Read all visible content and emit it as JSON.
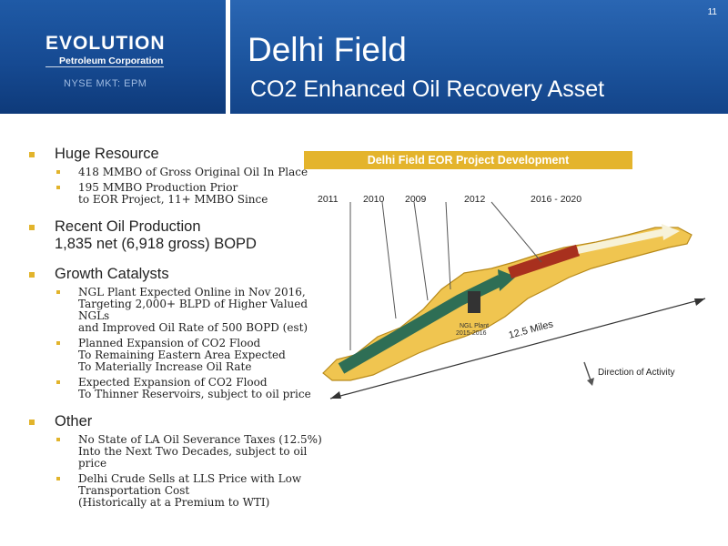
{
  "header": {
    "logo_word": "EVOLUTION",
    "logo_sub": "Petroleum Corporation",
    "ticker": "NYSE MKT: EPM",
    "title": "Delhi Field",
    "subtitle": "CO2 Enhanced Oil Recovery Asset",
    "slide_number": "11"
  },
  "bullets": [
    {
      "text": "Huge Resource",
      "sub": [
        "418 MMBO of Gross Original Oil In Place",
        "195 MMBO Production Prior\nto EOR Project, 11+ MMBO Since"
      ]
    },
    {
      "text": "Recent Oil Production\n1,835 net (6,918 gross) BOPD",
      "sub": []
    },
    {
      "text": "Growth Catalysts",
      "sub": [
        "NGL Plant Expected Online in Nov 2016,\nTargeting 2,000+ BLPD of Higher Valued NGLs\nand Improved Oil Rate of 500 BOPD (est)",
        "Planned Expansion of CO2 Flood\nTo Remaining Eastern Area Expected\nTo Materially Increase Oil Rate",
        "Expected Expansion of CO2 Flood\nTo Thinner Reservoirs, subject to oil price"
      ]
    },
    {
      "text": "Other",
      "sub": [
        "No State of LA Oil Severance Taxes (12.5%)\nInto the Next Two Decades, subject to oil price",
        "Delhi Crude Sells at LLS Price with Low\nTransportation Cost\n(Historically at a Premium to WTI)"
      ]
    }
  ],
  "map": {
    "title": "Delhi Field EOR Project Development",
    "years": [
      "2011",
      "2010",
      "2009",
      "2012",
      "2016 - 2020"
    ],
    "ngl_label": "NGL Plant",
    "ngl_years": "2015-2016",
    "distance": "12.5 Miles",
    "direction": "Direction of Activity",
    "colors": {
      "field": "#f0c550",
      "arrow_green": "#2e6e55",
      "arrow_red": "#a8301e",
      "bar": "#e4b42c"
    }
  }
}
